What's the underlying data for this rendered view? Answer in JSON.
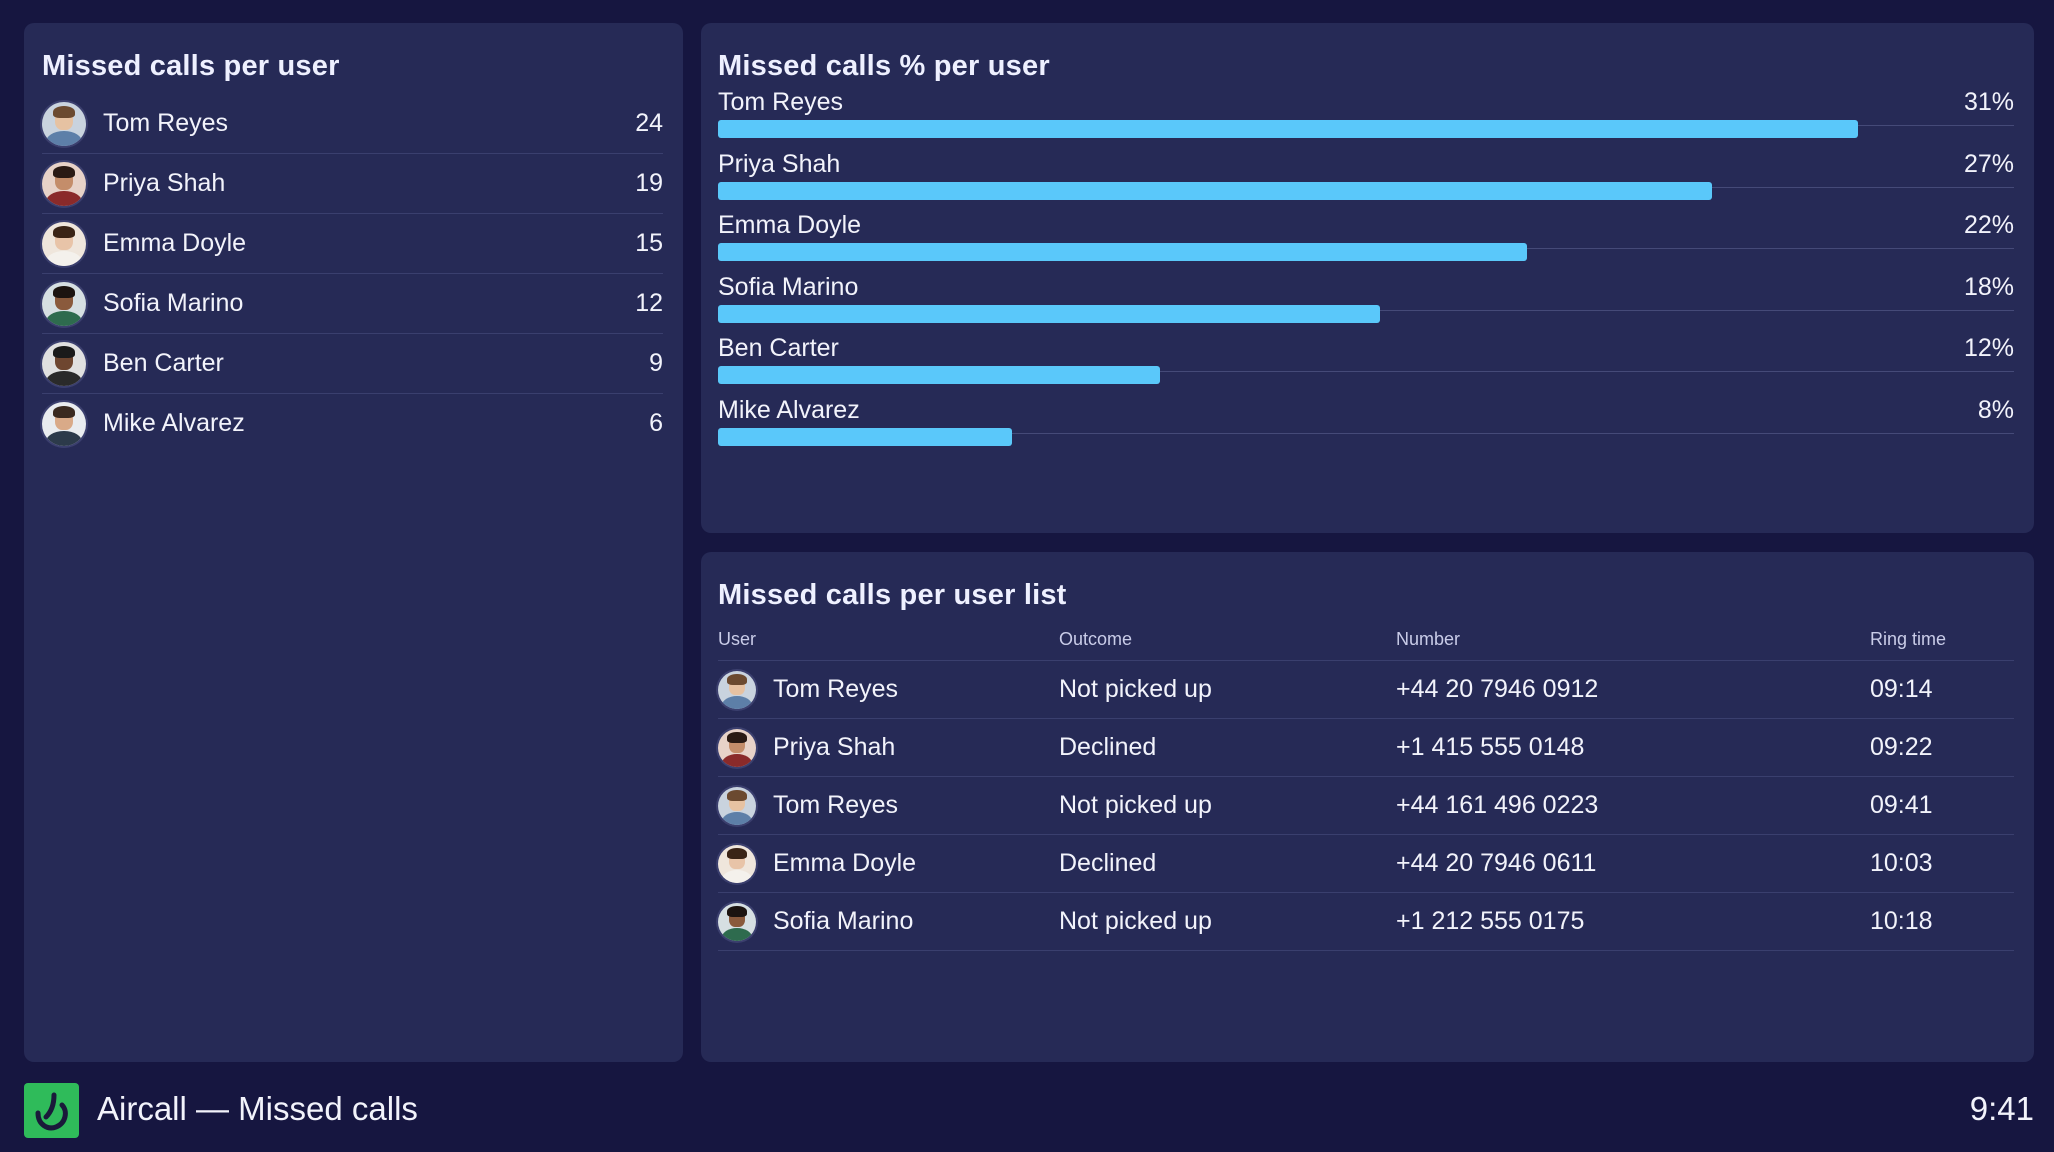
{
  "app_title": "Aircall — Missed calls",
  "clock": "9:41",
  "colors": {
    "background": "#161640",
    "panel": "#262a56",
    "bar": "#5ac8fa",
    "brand": "#2fbb5a"
  },
  "missed_per_user": {
    "title": "Missed calls per user",
    "rows": [
      {
        "name": "Tom Reyes",
        "count": "24",
        "avatar": "avatar-tom"
      },
      {
        "name": "Priya Shah",
        "count": "19",
        "avatar": "avatar-priya"
      },
      {
        "name": "Emma Doyle",
        "count": "15",
        "avatar": "avatar-emma"
      },
      {
        "name": "Sofia Marino",
        "count": "12",
        "avatar": "avatar-sofia"
      },
      {
        "name": "Ben Carter",
        "count": "9",
        "avatar": "avatar-ben"
      },
      {
        "name": "Mike Alvarez",
        "count": "6",
        "avatar": "avatar-mike"
      }
    ]
  },
  "missed_pct_per_user": {
    "title": "Missed calls % per user",
    "rows": [
      {
        "name": "Tom Reyes",
        "pct_label": "31%",
        "fill": 0.88
      },
      {
        "name": "Priya Shah",
        "pct_label": "27%",
        "fill": 0.767
      },
      {
        "name": "Emma Doyle",
        "pct_label": "22%",
        "fill": 0.624
      },
      {
        "name": "Sofia Marino",
        "pct_label": "18%",
        "fill": 0.511
      },
      {
        "name": "Ben Carter",
        "pct_label": "12%",
        "fill": 0.341
      },
      {
        "name": "Mike Alvarez",
        "pct_label": "8%",
        "fill": 0.227
      }
    ]
  },
  "missed_list": {
    "title": "Missed calls per user list",
    "columns": [
      "User",
      "Outcome",
      "Number",
      "Ring time"
    ],
    "rows": [
      {
        "user": "Tom Reyes",
        "avatar": "avatar-tom",
        "outcome": "Not picked up",
        "number": "+44 20 7946 0912",
        "ring_time": "09:14"
      },
      {
        "user": "Priya Shah",
        "avatar": "avatar-priya",
        "outcome": "Declined",
        "number": "+1 415 555 0148",
        "ring_time": "09:22"
      },
      {
        "user": "Tom Reyes",
        "avatar": "avatar-tom",
        "outcome": "Not picked up",
        "number": "+44 161 496 0223",
        "ring_time": "09:41"
      },
      {
        "user": "Emma Doyle",
        "avatar": "avatar-emma",
        "outcome": "Declined",
        "number": "+44 20 7946 0611",
        "ring_time": "10:03"
      },
      {
        "user": "Sofia Marino",
        "avatar": "avatar-sofia",
        "outcome": "Not picked up",
        "number": "+1 212 555 0175",
        "ring_time": "10:18"
      }
    ]
  }
}
